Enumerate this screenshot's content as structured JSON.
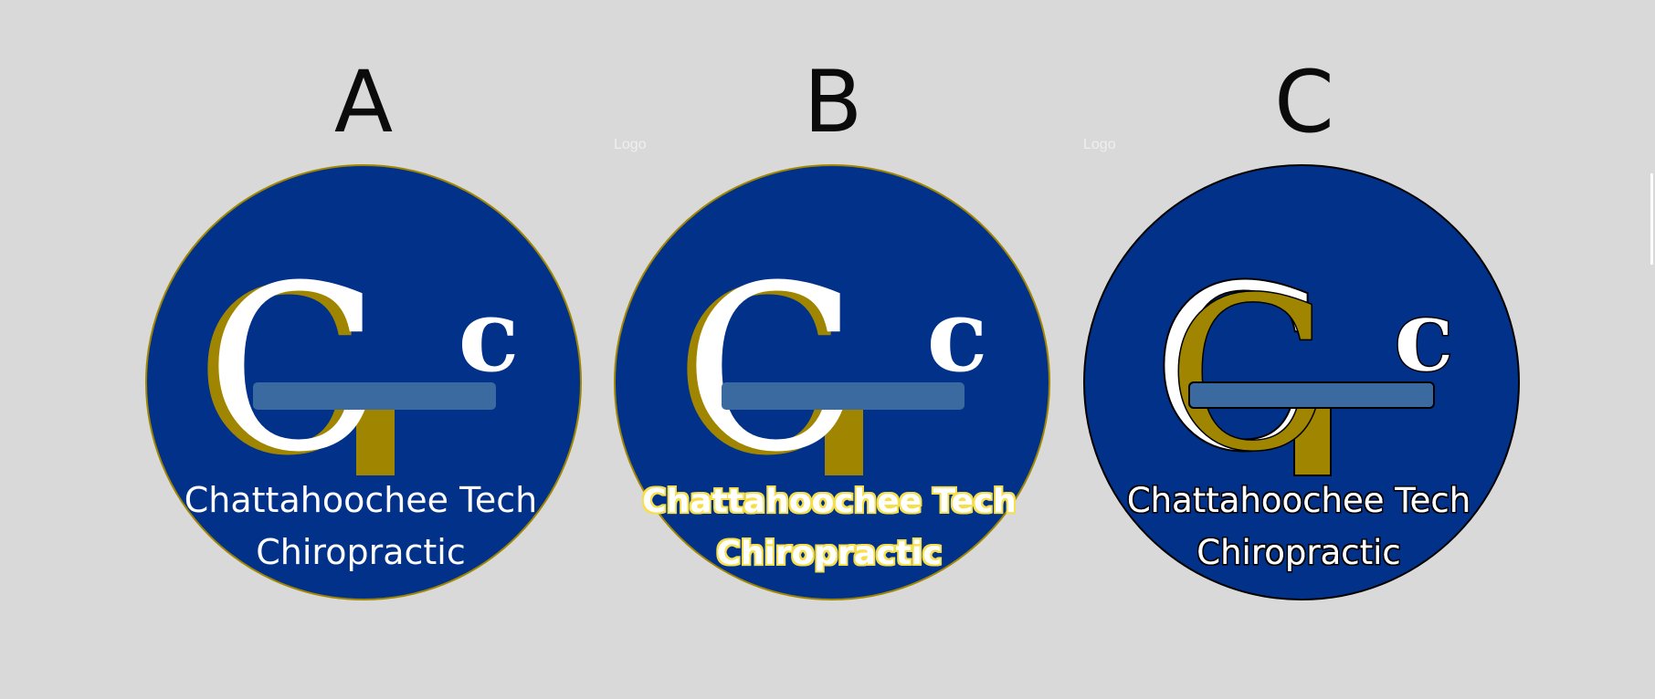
{
  "variants": [
    {
      "letter": "A",
      "name_line1": "Chattahoochee Tech",
      "name_line2": "Chiropractic",
      "monogram": "C",
      "small_letter": "c"
    },
    {
      "letter": "B",
      "name_line1": "Chattahoochee Tech",
      "name_line2": "Chiropractic",
      "monogram": "C",
      "small_letter": "c"
    },
    {
      "letter": "C",
      "name_line1": "Chattahoochee Tech",
      "name_line2": "Chiropractic",
      "monogram": "C",
      "small_letter": "c"
    }
  ],
  "frame_labels": [
    "Logo",
    "Logo"
  ],
  "colors": {
    "background": "#d9d9d9",
    "navy": "#02318a",
    "gold": "#a08600",
    "table_blue": "#3a6aa0",
    "white": "#ffffff",
    "text_glow_yellow": "#f5e04a"
  }
}
